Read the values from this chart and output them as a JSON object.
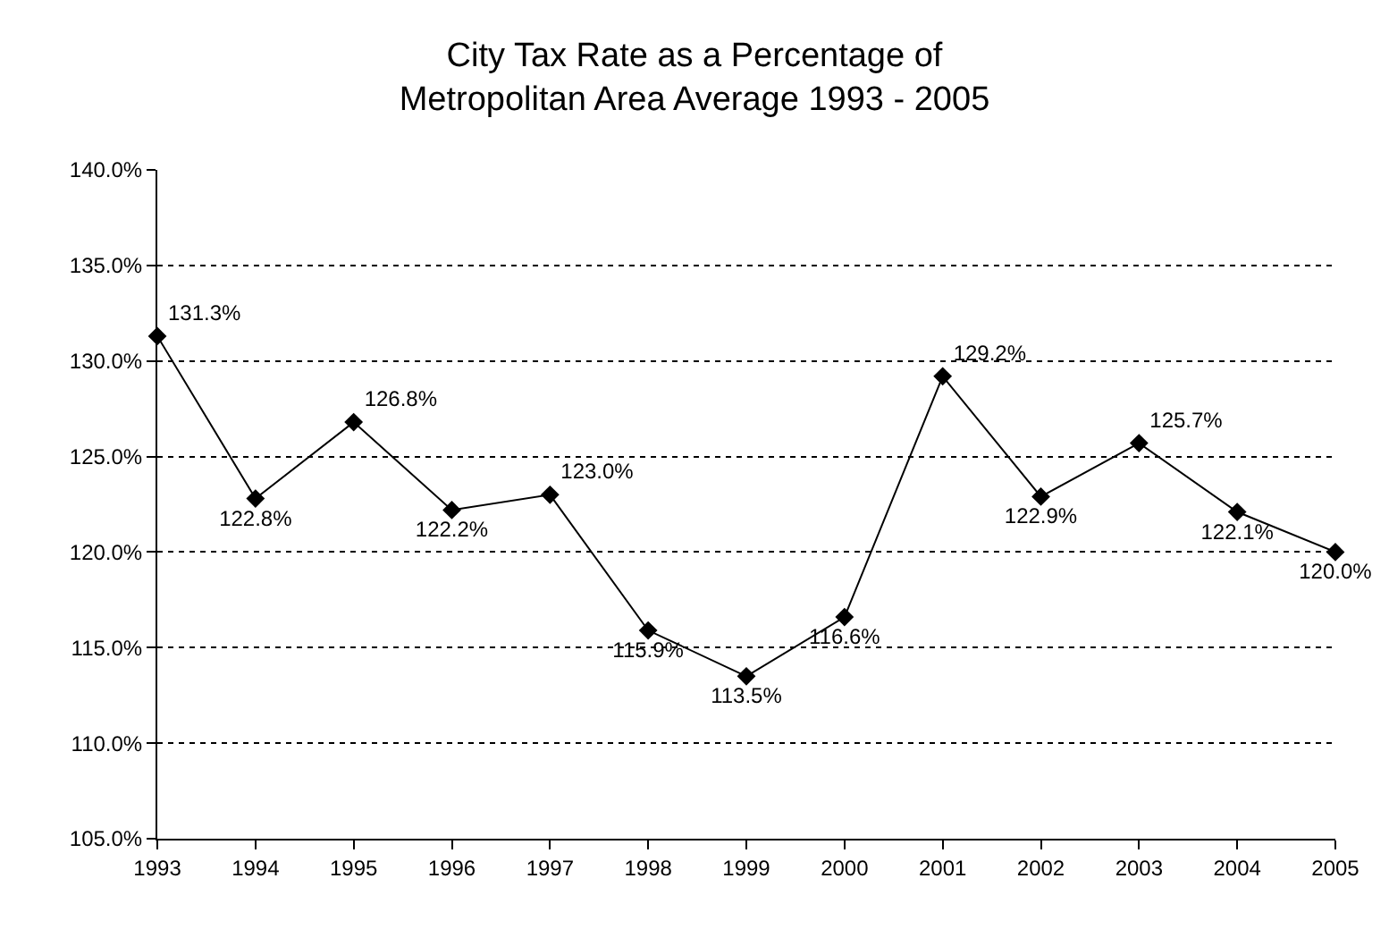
{
  "chart_data": {
    "type": "line",
    "title": "City Tax Rate as a Percentage of\nMetropolitan Area Average 1993 - 2005",
    "categories": [
      "1993",
      "1994",
      "1995",
      "1996",
      "1997",
      "1998",
      "1999",
      "2000",
      "2001",
      "2002",
      "2003",
      "2004",
      "2005"
    ],
    "values": [
      131.3,
      122.8,
      126.8,
      122.2,
      123.0,
      115.9,
      113.5,
      116.6,
      129.2,
      122.9,
      125.7,
      122.1,
      120.0
    ],
    "value_labels": [
      "131.3%",
      "122.8%",
      "126.8%",
      "122.2%",
      "123.0%",
      "115.9%",
      "113.5%",
      "116.6%",
      "129.2%",
      "122.9%",
      "125.7%",
      "122.1%",
      "120.0%"
    ],
    "color": "#000000",
    "marker": "diamond",
    "line_style": "solid",
    "grid": "y",
    "legend": false,
    "ylim": [
      105,
      140
    ],
    "yticks": [
      {
        "value": 105,
        "label": "105.0%"
      },
      {
        "value": 110,
        "label": "110.0%"
      },
      {
        "value": 115,
        "label": "115.0%"
      },
      {
        "value": 120,
        "label": "120.0%"
      },
      {
        "value": 125,
        "label": "125.0%"
      },
      {
        "value": 130,
        "label": "130.0%"
      },
      {
        "value": 135,
        "label": "135.0%"
      },
      {
        "value": 140,
        "label": "140.0%"
      }
    ]
  }
}
